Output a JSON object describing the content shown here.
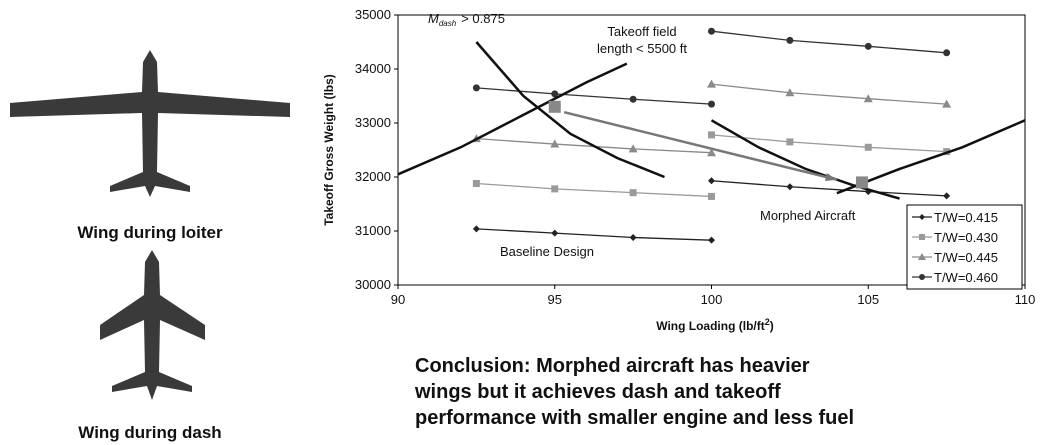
{
  "captions": {
    "loiter": "Wing during loiter",
    "dash": "Wing during dash"
  },
  "conclusion": [
    "Conclusion:  Morphed aircraft has heavier",
    "wings but it achieves dash and takeoff",
    "performance with smaller engine and less fuel"
  ],
  "chart_data": {
    "type": "line",
    "y_label": "Takeoff Gross Weight (lbs)",
    "x_label": {
      "text": "Wing Loading (lb/ft",
      "sup": "2",
      "end": ")"
    },
    "xlim": [
      90,
      110
    ],
    "xticks": [
      90,
      95,
      100,
      105,
      110
    ],
    "ylim": [
      30000,
      35000
    ],
    "yticks": [
      30000,
      31000,
      32000,
      33000,
      34000,
      35000
    ],
    "grid": false,
    "legend": "lower right",
    "series": [
      {
        "name": "T/W=0.415",
        "color": "#222222",
        "marker": "diamond",
        "x": [
          92.5,
          95,
          97.5,
          100,
          null,
          100,
          102.5,
          105,
          107.5
        ],
        "values": [
          31040,
          30960,
          30880,
          30830,
          null,
          31930,
          31820,
          31730,
          31650
        ]
      },
      {
        "name": "T/W=0.430",
        "color": "#9a9a9a",
        "marker": "square",
        "x": [
          92.5,
          95,
          97.5,
          100,
          null,
          100,
          102.5,
          105,
          107.5
        ],
        "values": [
          31880,
          31780,
          31710,
          31640,
          null,
          32780,
          32650,
          32550,
          32470
        ]
      },
      {
        "name": "T/W=0.445",
        "color": "#8a8a8a",
        "marker": "triangle",
        "x": [
          92.5,
          95,
          97.5,
          100,
          null,
          100,
          102.5,
          105,
          107.5
        ],
        "values": [
          32710,
          32610,
          32520,
          32450,
          null,
          33720,
          33560,
          33450,
          33350
        ]
      },
      {
        "name": "T/W=0.460",
        "color": "#333333",
        "marker": "circle",
        "x": [
          92.5,
          95,
          97.5,
          100,
          null,
          100,
          102.5,
          105,
          107.5
        ],
        "values": [
          33650,
          33540,
          33440,
          33350,
          null,
          34700,
          34530,
          34420,
          34300
        ]
      }
    ],
    "curves": [
      {
        "x": [
          92.5,
          94,
          95.5,
          97,
          98.5
        ],
        "y": [
          34500,
          33500,
          32800,
          32350,
          32000
        ]
      },
      {
        "x": [
          90,
          92,
          94,
          96,
          97.3
        ],
        "y": [
          32050,
          32550,
          33150,
          33750,
          34100
        ]
      },
      {
        "x": [
          100,
          101.5,
          103,
          104.5,
          106
        ],
        "y": [
          33050,
          32550,
          32150,
          31850,
          31600
        ]
      },
      {
        "x": [
          104,
          106,
          108,
          110
        ],
        "y": [
          31700,
          32150,
          32550,
          33050
        ]
      }
    ],
    "arrow": {
      "x": [
        95.3,
        104
      ],
      "y": [
        33200,
        31950
      ]
    },
    "design_points": {
      "x": [
        95,
        104.8
      ],
      "y": [
        33300,
        31900
      ]
    },
    "annotations": {
      "mach": {
        "m": "M",
        "sub": "dash",
        "rest": "> 0.875"
      },
      "takeoff": [
        "Takeoff field",
        "length < 5500 ft"
      ],
      "morphed": "Morphed Aircraft",
      "baseline": "Baseline Design"
    }
  }
}
